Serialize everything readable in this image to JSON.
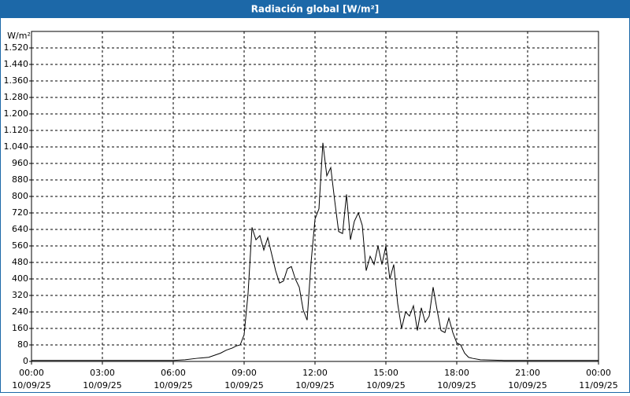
{
  "chart_data": {
    "type": "line",
    "title": "Radiación global [W/m²]",
    "y_label": "W/m²",
    "xlim": [
      0,
      1440
    ],
    "ylim": [
      0,
      1600
    ],
    "xticks": [
      {
        "value": 0,
        "label": "00:00"
      },
      {
        "value": 180,
        "label": "03:00"
      },
      {
        "value": 360,
        "label": "06:00"
      },
      {
        "value": 540,
        "label": "09:00"
      },
      {
        "value": 720,
        "label": "12:00"
      },
      {
        "value": 900,
        "label": "15:00"
      },
      {
        "value": 1080,
        "label": "18:00"
      },
      {
        "value": 1260,
        "label": "21:00"
      },
      {
        "value": 1440,
        "label": "00:00"
      }
    ],
    "xtick_dates": [
      "10/09/25",
      "10/09/25",
      "10/09/25",
      "10/09/25",
      "10/09/25",
      "10/09/25",
      "10/09/25",
      "10/09/25",
      "11/09/25"
    ],
    "yticks": [
      0,
      80,
      160,
      240,
      320,
      400,
      480,
      560,
      640,
      720,
      800,
      880,
      960,
      {
        "value": 1040,
        "label": "1.040"
      },
      {
        "value": 1120,
        "label": "1.120"
      },
      {
        "value": 1200,
        "label": "1.200"
      },
      {
        "value": 1280,
        "label": "1.280"
      },
      {
        "value": 1360,
        "label": "1.360"
      },
      {
        "value": 1440,
        "label": "1.440"
      },
      {
        "value": 1520,
        "label": "1.520"
      }
    ],
    "grid": true,
    "series": [
      {
        "name": "Radiación global",
        "color": "#000000",
        "x": [
          0,
          360,
          390,
          420,
          450,
          480,
          495,
          510,
          520,
          530,
          540,
          550,
          560,
          570,
          580,
          590,
          600,
          610,
          620,
          630,
          640,
          650,
          660,
          670,
          680,
          690,
          700,
          710,
          720,
          730,
          740,
          750,
          760,
          770,
          780,
          790,
          800,
          810,
          820,
          830,
          840,
          850,
          860,
          870,
          880,
          890,
          900,
          910,
          920,
          930,
          940,
          950,
          960,
          970,
          980,
          990,
          1000,
          1010,
          1020,
          1030,
          1040,
          1050,
          1060,
          1070,
          1080,
          1090,
          1100,
          1110,
          1120,
          1140,
          1200,
          1440
        ],
        "values": [
          5,
          5,
          8,
          15,
          20,
          40,
          55,
          65,
          75,
          80,
          130,
          330,
          650,
          590,
          610,
          540,
          600,
          520,
          440,
          380,
          390,
          450,
          460,
          400,
          360,
          250,
          200,
          480,
          690,
          740,
          1060,
          900,
          940,
          780,
          630,
          620,
          810,
          590,
          680,
          720,
          660,
          440,
          510,
          470,
          560,
          470,
          560,
          400,
          470,
          280,
          160,
          240,
          220,
          270,
          150,
          260,
          190,
          220,
          360,
          250,
          150,
          140,
          210,
          140,
          90,
          80,
          40,
          20,
          15,
          8,
          5,
          5
        ]
      }
    ]
  }
}
